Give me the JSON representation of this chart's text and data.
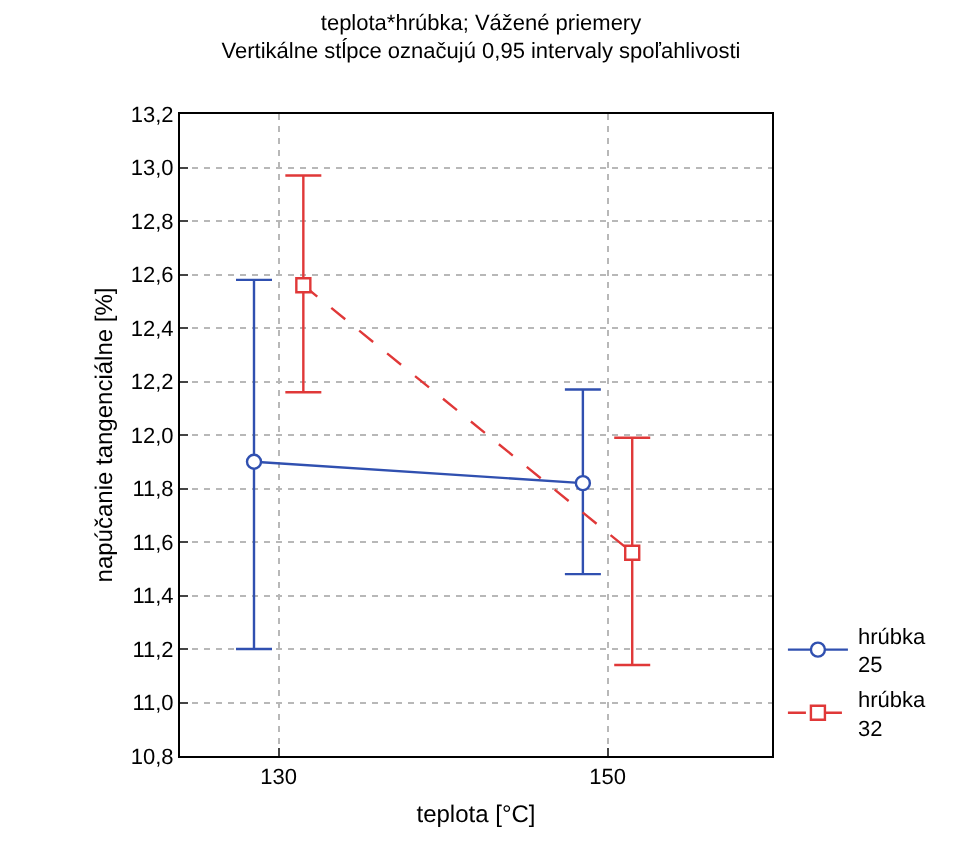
{
  "chart_data": {
    "type": "line",
    "title": "teplota*hrúbka; Vážené priemery",
    "subtitle": "Vertikálne stĺpce označujú 0,95 intervaly spoľahlivosti",
    "xlabel": "teplota [°C]",
    "ylabel": "napúčanie tangenciálne [%]",
    "xlim": [
      124,
      160
    ],
    "xticks": [
      130,
      150
    ],
    "ylim": [
      10.8,
      13.2
    ],
    "yticks": [
      {
        "value": 10.8,
        "label": "10,8"
      },
      {
        "value": 11,
        "label": "11,0"
      },
      {
        "value": 11.2,
        "label": "11,2"
      },
      {
        "value": 11.4,
        "label": "11,4"
      },
      {
        "value": 11.6,
        "label": "11,6"
      },
      {
        "value": 11.8,
        "label": "11,8"
      },
      {
        "value": 12,
        "label": "12,0"
      },
      {
        "value": 12.2,
        "label": "12,2"
      },
      {
        "value": 12.4,
        "label": "12,4"
      },
      {
        "value": 12.6,
        "label": "12,6"
      },
      {
        "value": 12.8,
        "label": "12,8"
      },
      {
        "value": 13,
        "label": "13,0"
      },
      {
        "value": 13.2,
        "label": "13,2"
      }
    ],
    "grid": true,
    "legend": "bottom right",
    "series": [
      {
        "name": "hrúbka 25",
        "color": "#3050b0",
        "x": [
          128.5,
          148.5
        ],
        "values": [
          11.9,
          11.82
        ],
        "errors": [
          [
            11.2,
            12.58
          ],
          [
            11.48,
            12.17
          ]
        ],
        "marker": "circle",
        "line_style": "solid"
      },
      {
        "name": "hrúbka 32",
        "color": "#e03838",
        "x": [
          131.5,
          151.5
        ],
        "values": [
          12.56,
          11.56
        ],
        "errors": [
          [
            12.16,
            12.97
          ],
          [
            11.14,
            11.99
          ]
        ],
        "marker": "square",
        "line_style": "dashed"
      }
    ]
  }
}
